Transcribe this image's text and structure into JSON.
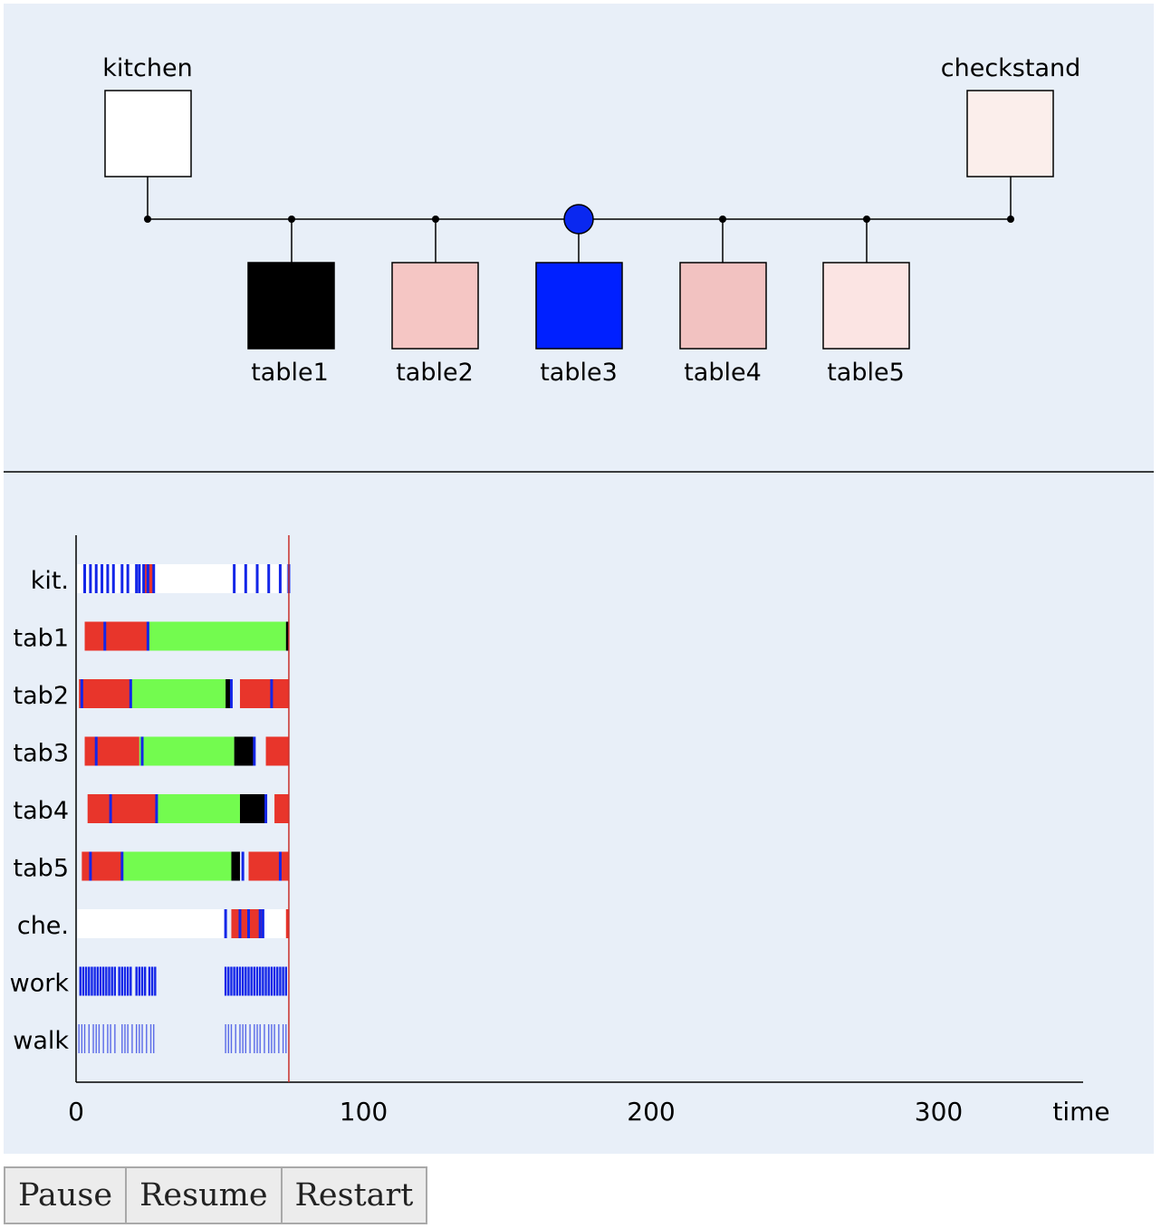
{
  "network": {
    "kitchen": {
      "label": "kitchen",
      "fill": "#ffffff"
    },
    "checkstand": {
      "label": "checkstand",
      "fill": "#fbeeeb"
    },
    "tables": [
      {
        "label": "table1",
        "fill": "#000000"
      },
      {
        "label": "table2",
        "fill": "#f5c6c4"
      },
      {
        "label": "table3",
        "fill": "#0020ff"
      },
      {
        "label": "table4",
        "fill": "#f2c2c1"
      },
      {
        "label": "table5",
        "fill": "#fbe4e3"
      }
    ],
    "waiter_at": "table3",
    "waiter_color": "#0a28f0"
  },
  "timeline": {
    "rows": [
      "kit.",
      "tab1",
      "tab2",
      "tab3",
      "tab4",
      "tab5",
      "che.",
      "work",
      "walk"
    ],
    "x_ticks": [
      "0",
      "100",
      "200",
      "300"
    ],
    "x_tick_values": [
      0,
      100,
      200,
      300
    ],
    "x_label": "time",
    "x_max": 350,
    "current_time": 74,
    "colors": {
      "red": "#e8352b",
      "green": "#73fb4f",
      "black": "#000000",
      "blue": "#1326e8",
      "white": "#ffffff",
      "cursor": "#c9302c"
    },
    "segments": [
      [
        [
          0.5,
          23.5,
          "white"
        ],
        [
          23.5,
          27,
          "red"
        ],
        [
          27,
          54,
          "white"
        ],
        [
          54,
          73,
          "white"
        ]
      ],
      [
        [
          3,
          25,
          "red"
        ],
        [
          25,
          73,
          "green"
        ],
        [
          73,
          74,
          "black"
        ]
      ],
      [
        [
          1,
          19,
          "red"
        ],
        [
          19,
          52,
          "green"
        ],
        [
          52,
          54,
          "black"
        ],
        [
          57,
          74,
          "red"
        ]
      ],
      [
        [
          3,
          22,
          "red"
        ],
        [
          22,
          55,
          "green"
        ],
        [
          55,
          62,
          "black"
        ],
        [
          66,
          74,
          "red"
        ]
      ],
      [
        [
          4,
          28,
          "red"
        ],
        [
          28,
          57,
          "green"
        ],
        [
          57,
          66,
          "black"
        ],
        [
          69,
          74,
          "red"
        ]
      ],
      [
        [
          2,
          16,
          "red"
        ],
        [
          16,
          54,
          "green"
        ],
        [
          54,
          57,
          "black"
        ],
        [
          60,
          74,
          "red"
        ]
      ],
      [
        [
          0.5,
          52,
          "white"
        ],
        [
          54,
          65,
          "red"
        ],
        [
          65,
          73,
          "white"
        ],
        [
          73,
          74,
          "red"
        ]
      ]
    ],
    "events": [
      [
        3,
        5,
        7,
        9,
        11,
        13,
        16,
        18,
        21,
        22,
        23.5,
        25,
        27,
        55,
        59,
        63,
        67,
        71,
        74
      ],
      [
        10,
        25
      ],
      [
        2,
        19,
        54,
        68
      ],
      [
        7,
        23,
        62
      ],
      [
        12,
        28,
        66
      ],
      [
        5,
        16,
        58,
        71
      ],
      [
        52,
        57,
        60,
        64,
        65
      ]
    ],
    "work_ticks": [
      1.5,
      2.5,
      3.5,
      4.5,
      5.5,
      6.5,
      7.5,
      8.5,
      9.5,
      10.5,
      11.5,
      12.5,
      13.5,
      15,
      16,
      17,
      18,
      19,
      21,
      22,
      23,
      24,
      25.5,
      26.5,
      27.5,
      52,
      53,
      54,
      55,
      56,
      57,
      58,
      59,
      60,
      61,
      62,
      63,
      64,
      65,
      66,
      67,
      68,
      69,
      70,
      71,
      72,
      73
    ],
    "walk_ticks": [
      1,
      2,
      3,
      4.5,
      6,
      7,
      8,
      9.5,
      11,
      12,
      13.5,
      16,
      17,
      18,
      19.5,
      21,
      22,
      23,
      24.5,
      26,
      27,
      52,
      53,
      54,
      55.5,
      57,
      58,
      59,
      60.5,
      62,
      63,
      64,
      65.5,
      67,
      68,
      69,
      70.5,
      72,
      73
    ]
  },
  "controls": {
    "pause": "Pause",
    "resume": "Resume",
    "restart": "Restart"
  }
}
